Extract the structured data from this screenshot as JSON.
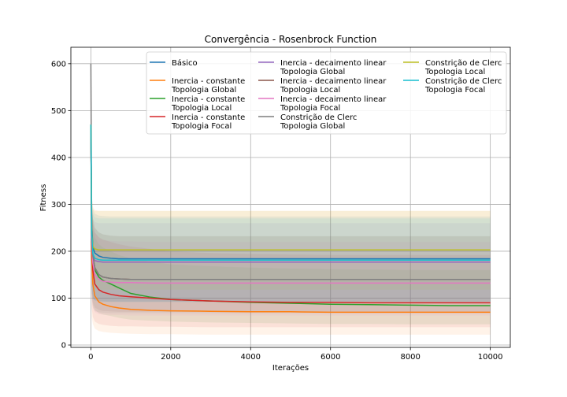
{
  "chart_data": {
    "type": "line",
    "title": "Convergência - Rosenbrock Function",
    "xlabel": "Iterações",
    "ylabel": "Fitness",
    "xlim": [
      -500,
      10500
    ],
    "ylim": [
      -5,
      635
    ],
    "xticks": [
      0,
      2000,
      4000,
      6000,
      8000,
      10000
    ],
    "yticks": [
      0,
      100,
      200,
      300,
      400,
      500,
      600
    ],
    "grid": true,
    "legend_position": "top-right",
    "legend_columns": 3,
    "x": [
      0,
      20,
      50,
      100,
      200,
      300,
      500,
      700,
      1000,
      1500,
      2000,
      3000,
      4000,
      5000,
      6000,
      7000,
      8000,
      9000,
      10000
    ],
    "series": [
      {
        "name": "Básico",
        "color": "#1f77b4",
        "values": [
          470,
          260,
          210,
          196,
          190,
          187,
          185,
          184,
          184,
          184,
          184,
          184,
          184,
          184,
          184,
          184,
          184,
          184,
          184
        ],
        "band_lower": [
          470,
          120,
          100,
          96,
          94,
          93,
          92,
          92,
          92,
          92,
          92,
          92,
          92,
          92,
          92,
          92,
          92,
          92,
          92
        ],
        "band_upper": [
          470,
          330,
          290,
          280,
          276,
          275,
          274,
          274,
          274,
          274,
          274,
          274,
          274,
          274,
          274,
          274,
          274,
          274,
          274
        ]
      },
      {
        "name": "Inercia - constante\nTopologia Global",
        "color": "#ff7f0e",
        "values": [
          470,
          190,
          130,
          105,
          92,
          87,
          82,
          79,
          76,
          74,
          73,
          72,
          71,
          71,
          70,
          70,
          70,
          70,
          70
        ],
        "band_lower": [
          470,
          60,
          45,
          35,
          30,
          28,
          26,
          25,
          24,
          23,
          23,
          22,
          22,
          22,
          22,
          22,
          22,
          22,
          22
        ],
        "band_upper": [
          470,
          320,
          295,
          288,
          286,
          286,
          286,
          286,
          286,
          286,
          286,
          286,
          286,
          286,
          286,
          286,
          286,
          286,
          286
        ]
      },
      {
        "name": "Inercia - constante\nTopologia Local",
        "color": "#2ca02c",
        "values": [
          470,
          250,
          190,
          160,
          145,
          138,
          130,
          122,
          110,
          102,
          97,
          94,
          91,
          89,
          87,
          86,
          85,
          84,
          84
        ],
        "band_lower": [
          470,
          110,
          85,
          75,
          68,
          65,
          62,
          58,
          54,
          52,
          50,
          48,
          47,
          46,
          45,
          45,
          44,
          44,
          44
        ],
        "band_upper": [
          470,
          300,
          250,
          230,
          215,
          208,
          200,
          192,
          185,
          178,
          172,
          168,
          165,
          163,
          162,
          161,
          160,
          160,
          160
        ]
      },
      {
        "name": "Inercia - constante\nTopologia Focal",
        "color": "#d62728",
        "values": [
          470,
          220,
          160,
          130,
          118,
          113,
          108,
          105,
          103,
          100,
          97,
          94,
          92,
          91,
          91,
          90,
          90,
          90,
          90
        ],
        "band_lower": [
          470,
          80,
          60,
          50,
          45,
          43,
          41,
          40,
          40,
          39,
          39,
          38,
          38,
          38,
          38,
          38,
          38,
          38,
          38
        ],
        "band_upper": [
          470,
          300,
          260,
          240,
          230,
          225,
          220,
          215,
          210,
          205,
          200,
          196,
          194,
          193,
          192,
          192,
          192,
          192,
          192
        ]
      },
      {
        "name": "Inercia - decaimento linear\nTopologia Global",
        "color": "#9467bd",
        "values": [
          470,
          230,
          190,
          180,
          178,
          177,
          177,
          177,
          177,
          177,
          177,
          177,
          177,
          177,
          177,
          177,
          177,
          177,
          177
        ],
        "band_lower": [
          470,
          120,
          100,
          95,
          94,
          93,
          93,
          93,
          93,
          93,
          93,
          93,
          93,
          93,
          93,
          93,
          93,
          93,
          93
        ],
        "band_upper": [
          470,
          300,
          270,
          262,
          260,
          260,
          260,
          260,
          260,
          260,
          260,
          260,
          260,
          260,
          260,
          260,
          260,
          260,
          260
        ]
      },
      {
        "name": "Inercia - decaimento linear\nTopologia Local",
        "color": "#8c564b",
        "values": [
          470,
          240,
          190,
          165,
          150,
          145,
          142,
          141,
          140,
          140,
          140,
          140,
          140,
          140,
          140,
          140,
          140,
          140,
          140
        ],
        "band_lower": [
          470,
          110,
          90,
          80,
          75,
          73,
          72,
          71,
          71,
          71,
          71,
          71,
          71,
          71,
          71,
          71,
          71,
          71,
          71
        ],
        "band_upper": [
          470,
          310,
          270,
          250,
          240,
          236,
          233,
          232,
          232,
          232,
          232,
          232,
          232,
          232,
          232,
          232,
          232,
          232,
          232
        ]
      },
      {
        "name": "Inercia - decaimento linear\nTopologia Focal",
        "color": "#e377c2",
        "values": [
          470,
          230,
          175,
          150,
          140,
          136,
          134,
          133,
          133,
          132,
          132,
          132,
          132,
          132,
          132,
          132,
          132,
          132,
          132
        ],
        "band_lower": [
          470,
          100,
          80,
          70,
          66,
          65,
          64,
          64,
          63,
          63,
          63,
          63,
          63,
          63,
          63,
          63,
          63,
          63,
          63
        ],
        "band_upper": [
          470,
          300,
          260,
          240,
          228,
          224,
          222,
          221,
          221,
          220,
          220,
          220,
          220,
          220,
          220,
          220,
          220,
          220,
          220
        ]
      },
      {
        "name": "Constrição de Clerc\nTopologia Global",
        "color": "#7f7f7f",
        "values": [
          600,
          260,
          190,
          165,
          150,
          145,
          142,
          141,
          140,
          140,
          140,
          140,
          140,
          140,
          140,
          140,
          140,
          140,
          140
        ],
        "band_lower": [
          600,
          100,
          80,
          72,
          70,
          69,
          68,
          68,
          68,
          68,
          68,
          68,
          68,
          68,
          68,
          68,
          68,
          68,
          68
        ],
        "band_upper": [
          600,
          320,
          270,
          250,
          240,
          236,
          233,
          232,
          232,
          232,
          232,
          232,
          232,
          232,
          232,
          232,
          232,
          232,
          232
        ]
      },
      {
        "name": "Constrição de Clerc\nTopologia Local",
        "color": "#bcbd22",
        "values": [
          470,
          240,
          210,
          205,
          203,
          203,
          203,
          203,
          203,
          203,
          203,
          203,
          203,
          203,
          203,
          203,
          203,
          203,
          203
        ],
        "band_lower": [
          470,
          140,
          125,
          120,
          118,
          118,
          118,
          118,
          118,
          118,
          118,
          118,
          118,
          118,
          118,
          118,
          118,
          118,
          118
        ],
        "band_upper": [
          470,
          320,
          290,
          286,
          286,
          286,
          286,
          286,
          286,
          286,
          286,
          286,
          286,
          286,
          286,
          286,
          286,
          286,
          286
        ]
      },
      {
        "name": "Constrição de Clerc\nTopologia Focal",
        "color": "#17becf",
        "values": [
          470,
          240,
          195,
          185,
          182,
          181,
          181,
          181,
          181,
          181,
          181,
          181,
          181,
          181,
          181,
          181,
          181,
          181,
          181
        ],
        "band_lower": [
          470,
          120,
          100,
          95,
          93,
          92,
          92,
          92,
          92,
          92,
          92,
          92,
          92,
          92,
          92,
          92,
          92,
          92,
          92
        ],
        "band_upper": [
          470,
          310,
          280,
          272,
          270,
          270,
          270,
          270,
          270,
          270,
          270,
          270,
          270,
          270,
          270,
          270,
          270,
          270,
          270
        ]
      }
    ]
  }
}
